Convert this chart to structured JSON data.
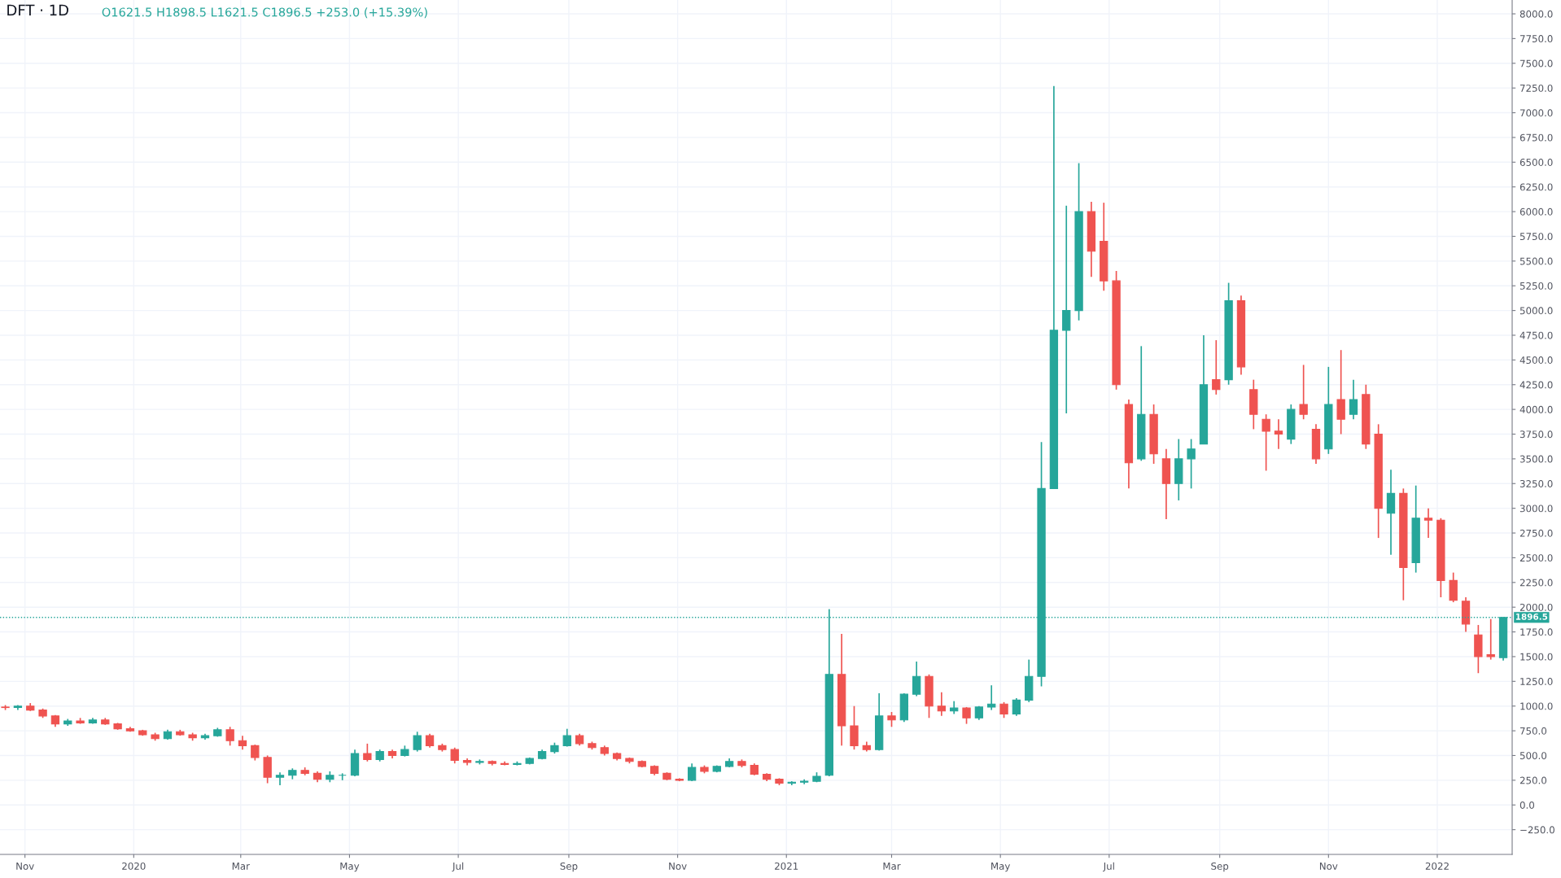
{
  "chart_data": {
    "type": "candlestick",
    "title": "DFT · 1D",
    "annotations": [
      "O1621.5 H1898.5 L1621.5 C1896.5 +253.0 (+15.39%)"
    ],
    "x": [
      "2019-10-21",
      "2019-10-28",
      "2019-11-04",
      "2019-11-11",
      "2019-11-18",
      "2019-11-25",
      "2019-12-02",
      "2019-12-09",
      "2019-12-16",
      "2019-12-23",
      "2019-12-30",
      "2020-01-06",
      "2020-01-13",
      "2020-01-20",
      "2020-01-27",
      "2020-02-03",
      "2020-02-10",
      "2020-02-17",
      "2020-02-24",
      "2020-03-02",
      "2020-03-09",
      "2020-03-16",
      "2020-03-23",
      "2020-03-30",
      "2020-04-06",
      "2020-04-13",
      "2020-04-20",
      "2020-04-27",
      "2020-05-04",
      "2020-05-11",
      "2020-05-18",
      "2020-05-25",
      "2020-06-01",
      "2020-06-08",
      "2020-06-15",
      "2020-06-22",
      "2020-06-29",
      "2020-07-06",
      "2020-07-13",
      "2020-07-20",
      "2020-07-27",
      "2020-08-03",
      "2020-08-10",
      "2020-08-17",
      "2020-08-24",
      "2020-08-31",
      "2020-09-07",
      "2020-09-14",
      "2020-09-21",
      "2020-09-28",
      "2020-10-05",
      "2020-10-12",
      "2020-10-19",
      "2020-10-26",
      "2020-11-02",
      "2020-11-09",
      "2020-11-16",
      "2020-11-23",
      "2020-11-30",
      "2020-12-07",
      "2020-12-14",
      "2020-12-21",
      "2020-12-28",
      "2021-01-04",
      "2021-01-11",
      "2021-01-18",
      "2021-01-25",
      "2021-02-01",
      "2021-02-08",
      "2021-02-15",
      "2021-02-22",
      "2021-03-01",
      "2021-03-08",
      "2021-03-15",
      "2021-03-22",
      "2021-03-29",
      "2021-04-05",
      "2021-04-12",
      "2021-04-19",
      "2021-04-26",
      "2021-05-03",
      "2021-05-10",
      "2021-05-17",
      "2021-05-24",
      "2021-05-31",
      "2021-06-07",
      "2021-06-14",
      "2021-06-21",
      "2021-06-28",
      "2021-07-05",
      "2021-07-12",
      "2021-07-19",
      "2021-07-26",
      "2021-08-02",
      "2021-08-09",
      "2021-08-16",
      "2021-08-23",
      "2021-08-30",
      "2021-09-06",
      "2021-09-13",
      "2021-09-20",
      "2021-09-27",
      "2021-10-04",
      "2021-10-11",
      "2021-10-18",
      "2021-10-25",
      "2021-11-01",
      "2021-11-08",
      "2021-11-15",
      "2021-11-22",
      "2021-11-29",
      "2021-12-06",
      "2021-12-13",
      "2021-12-20",
      "2021-12-27",
      "2022-01-03",
      "2022-01-10",
      "2022-01-17",
      "2022-01-24",
      "2022-01-31",
      "2022-02-07"
    ],
    "ohlc": [
      [
        990,
        1010,
        960,
        985
      ],
      [
        985,
        1010,
        960,
        1000
      ],
      [
        1000,
        1030,
        950,
        960
      ],
      [
        960,
        975,
        880,
        900
      ],
      [
        900,
        910,
        790,
        820
      ],
      [
        820,
        870,
        800,
        850
      ],
      [
        850,
        880,
        820,
        830
      ],
      [
        830,
        880,
        820,
        860
      ],
      [
        860,
        880,
        810,
        820
      ],
      [
        820,
        830,
        760,
        770
      ],
      [
        770,
        790,
        740,
        750
      ],
      [
        750,
        760,
        700,
        710
      ],
      [
        710,
        730,
        650,
        670
      ],
      [
        670,
        760,
        660,
        740
      ],
      [
        740,
        760,
        700,
        710
      ],
      [
        710,
        730,
        650,
        680
      ],
      [
        680,
        720,
        660,
        700
      ],
      [
        700,
        780,
        690,
        760
      ],
      [
        760,
        790,
        600,
        650
      ],
      [
        650,
        700,
        560,
        600
      ],
      [
        600,
        610,
        450,
        480
      ],
      [
        480,
        500,
        220,
        280
      ],
      [
        280,
        330,
        200,
        300
      ],
      [
        300,
        370,
        260,
        350
      ],
      [
        350,
        380,
        300,
        320
      ],
      [
        320,
        340,
        230,
        260
      ],
      [
        260,
        340,
        230,
        300
      ],
      [
        300,
        320,
        250,
        300
      ],
      [
        300,
        560,
        290,
        520
      ],
      [
        520,
        620,
        440,
        460
      ],
      [
        460,
        560,
        440,
        540
      ],
      [
        540,
        560,
        470,
        500
      ],
      [
        500,
        600,
        490,
        560
      ],
      [
        560,
        740,
        540,
        700
      ],
      [
        700,
        720,
        580,
        600
      ],
      [
        600,
        620,
        540,
        560
      ],
      [
        560,
        580,
        420,
        450
      ],
      [
        450,
        470,
        400,
        430
      ],
      [
        430,
        460,
        410,
        440
      ],
      [
        440,
        450,
        400,
        420
      ],
      [
        420,
        440,
        400,
        410
      ],
      [
        410,
        440,
        400,
        420
      ],
      [
        420,
        480,
        410,
        470
      ],
      [
        470,
        560,
        460,
        540
      ],
      [
        540,
        630,
        520,
        600
      ],
      [
        600,
        770,
        590,
        700
      ],
      [
        700,
        720,
        600,
        620
      ],
      [
        620,
        640,
        560,
        580
      ],
      [
        580,
        600,
        500,
        520
      ],
      [
        520,
        530,
        450,
        470
      ],
      [
        470,
        480,
        420,
        440
      ],
      [
        440,
        450,
        380,
        390
      ],
      [
        390,
        400,
        300,
        320
      ],
      [
        320,
        330,
        250,
        260
      ],
      [
        260,
        270,
        240,
        250
      ],
      [
        250,
        420,
        240,
        380
      ],
      [
        380,
        400,
        320,
        340
      ],
      [
        340,
        400,
        330,
        390
      ],
      [
        390,
        470,
        380,
        440
      ],
      [
        440,
        460,
        380,
        400
      ],
      [
        400,
        420,
        300,
        310
      ],
      [
        310,
        320,
        240,
        260
      ],
      [
        260,
        270,
        200,
        220
      ],
      [
        220,
        240,
        200,
        230
      ],
      [
        230,
        260,
        210,
        240
      ],
      [
        240,
        330,
        230,
        290
      ],
      [
        300,
        1980,
        290,
        1320
      ],
      [
        1320,
        1730,
        600,
        800
      ],
      [
        800,
        1000,
        560,
        600
      ],
      [
        600,
        640,
        540,
        560
      ],
      [
        560,
        1130,
        550,
        900
      ],
      [
        900,
        940,
        790,
        860
      ],
      [
        860,
        1130,
        840,
        1120
      ],
      [
        1120,
        1450,
        1100,
        1300
      ],
      [
        1300,
        1320,
        880,
        1000
      ],
      [
        1000,
        1140,
        900,
        950
      ],
      [
        950,
        1050,
        920,
        980
      ],
      [
        980,
        990,
        820,
        880
      ],
      [
        880,
        1000,
        860,
        990
      ],
      [
        990,
        1210,
        960,
        1020
      ],
      [
        1020,
        1040,
        880,
        920
      ],
      [
        920,
        1080,
        900,
        1060
      ],
      [
        1060,
        1470,
        1040,
        1300
      ],
      [
        1300,
        3670,
        1200,
        3200
      ],
      [
        3200,
        7270,
        3200,
        4800
      ],
      [
        4800,
        6060,
        3960,
        5000
      ],
      [
        5000,
        6490,
        4900,
        6000
      ],
      [
        6000,
        6100,
        5340,
        5600
      ],
      [
        5700,
        6090,
        5200,
        5300
      ],
      [
        5300,
        5400,
        4200,
        4250
      ],
      [
        4050,
        4100,
        3200,
        3460
      ],
      [
        3500,
        4640,
        3480,
        3950
      ],
      [
        3950,
        4050,
        3450,
        3550
      ],
      [
        3500,
        3600,
        2890,
        3250
      ],
      [
        3250,
        3700,
        3080,
        3500
      ],
      [
        3500,
        3700,
        3200,
        3600
      ],
      [
        3650,
        4750,
        3650,
        4250
      ],
      [
        4300,
        4700,
        4150,
        4200
      ],
      [
        4300,
        5280,
        4250,
        5100
      ],
      [
        5100,
        5150,
        4350,
        4430
      ],
      [
        4200,
        4300,
        3800,
        3950
      ],
      [
        3900,
        3950,
        3380,
        3780
      ],
      [
        3780,
        3900,
        3600,
        3750
      ],
      [
        3700,
        4050,
        3650,
        4000
      ],
      [
        4050,
        4450,
        3900,
        3950
      ],
      [
        3800,
        3850,
        3450,
        3500
      ],
      [
        3600,
        4430,
        3550,
        4050
      ],
      [
        4100,
        4600,
        3750,
        3900
      ],
      [
        3950,
        4300,
        3900,
        4100
      ],
      [
        4150,
        4250,
        3600,
        3650
      ],
      [
        3750,
        3850,
        2700,
        3000
      ],
      [
        2950,
        3390,
        2530,
        3150
      ],
      [
        3150,
        3200,
        2070,
        2400
      ],
      [
        2450,
        3230,
        2350,
        2900
      ],
      [
        2900,
        3000,
        2700,
        2880
      ],
      [
        2880,
        2900,
        2100,
        2270
      ],
      [
        2270,
        2350,
        2050,
        2070
      ],
      [
        2060,
        2100,
        1750,
        1830
      ],
      [
        1720,
        1820,
        1333,
        1500
      ],
      [
        1520,
        1880,
        1470,
        1500
      ],
      [
        1490,
        1898.5,
        1460,
        1896.5
      ]
    ],
    "colors": [
      "#ef5350",
      "#26a69a",
      "#ef5350",
      "#ef5350",
      "#ef5350",
      "#26a69a",
      "#ef5350",
      "#26a69a",
      "#ef5350",
      "#ef5350",
      "#ef5350",
      "#ef5350",
      "#ef5350",
      "#26a69a",
      "#ef5350",
      "#ef5350",
      "#26a69a",
      "#26a69a",
      "#ef5350",
      "#ef5350",
      "#ef5350",
      "#ef5350",
      "#26a69a",
      "#26a69a",
      "#ef5350",
      "#ef5350",
      "#26a69a",
      "#26a69a",
      "#26a69a",
      "#ef5350",
      "#26a69a",
      "#ef5350",
      "#26a69a",
      "#26a69a",
      "#ef5350",
      "#ef5350",
      "#ef5350",
      "#ef5350",
      "#26a69a",
      "#ef5350",
      "#ef5350",
      "#26a69a",
      "#26a69a",
      "#26a69a",
      "#26a69a",
      "#26a69a",
      "#ef5350",
      "#ef5350",
      "#ef5350",
      "#ef5350",
      "#ef5350",
      "#ef5350",
      "#ef5350",
      "#ef5350",
      "#ef5350",
      "#26a69a",
      "#ef5350",
      "#26a69a",
      "#26a69a",
      "#ef5350",
      "#ef5350",
      "#ef5350",
      "#ef5350",
      "#26a69a",
      "#26a69a",
      "#26a69a",
      "#26a69a",
      "#ef5350",
      "#ef5350",
      "#ef5350",
      "#26a69a",
      "#ef5350",
      "#26a69a",
      "#26a69a",
      "#ef5350",
      "#ef5350",
      "#26a69a",
      "#ef5350",
      "#26a69a",
      "#26a69a",
      "#ef5350",
      "#26a69a",
      "#26a69a",
      "#26a69a",
      "#26a69a",
      "#26a69a",
      "#26a69a",
      "#ef5350",
      "#ef5350",
      "#ef5350",
      "#ef5350",
      "#26a69a",
      "#ef5350",
      "#ef5350",
      "#26a69a",
      "#26a69a",
      "#26a69a",
      "#ef5350",
      "#26a69a",
      "#ef5350",
      "#ef5350",
      "#ef5350",
      "#ef5350",
      "#26a69a",
      "#ef5350",
      "#ef5350",
      "#26a69a",
      "#ef5350",
      "#26a69a",
      "#ef5350",
      "#ef5350",
      "#26a69a",
      "#ef5350",
      "#26a69a",
      "#ef5350",
      "#ef5350",
      "#ef5350",
      "#ef5350",
      "#ef5350",
      "#ef5350",
      "#26a69a"
    ],
    "xlim": [
      "2019-10-18",
      "2022-02-12"
    ],
    "xticks": [
      {
        "value": "2019-11-01",
        "label": "Nov"
      },
      {
        "value": "2020-01-01",
        "label": "2020"
      },
      {
        "value": "2020-03-01",
        "label": "Mar"
      },
      {
        "value": "2020-05-01",
        "label": "May"
      },
      {
        "value": "2020-07-01",
        "label": "Jul"
      },
      {
        "value": "2020-09-01",
        "label": "Sep"
      },
      {
        "value": "2020-11-01",
        "label": "Nov"
      },
      {
        "value": "2021-01-01",
        "label": "2021"
      },
      {
        "value": "2021-03-01",
        "label": "Mar"
      },
      {
        "value": "2021-05-01",
        "label": "May"
      },
      {
        "value": "2021-07-01",
        "label": "Jul"
      },
      {
        "value": "2021-09-01",
        "label": "Sep"
      },
      {
        "value": "2021-11-01",
        "label": "Nov"
      },
      {
        "value": "2022-01-01",
        "label": "2022"
      }
    ],
    "ylim": [
      -500,
      8140
    ],
    "yticks": [
      {
        "value": -250,
        "label": "−250.0"
      },
      {
        "value": 0,
        "label": "0.0"
      },
      {
        "value": 250,
        "label": "250.0"
      },
      {
        "value": 500,
        "label": "500.0"
      },
      {
        "value": 750,
        "label": "750.0"
      },
      {
        "value": 1000,
        "label": "1000.0"
      },
      {
        "value": 1250,
        "label": "1250.0"
      },
      {
        "value": 1500,
        "label": "1500.0"
      },
      {
        "value": 1750,
        "label": "1750.0"
      },
      {
        "value": 2000,
        "label": "2000.0"
      },
      {
        "value": 2250,
        "label": "2250.0"
      },
      {
        "value": 2500,
        "label": "2500.0"
      },
      {
        "value": 2750,
        "label": "2750.0"
      },
      {
        "value": 3000,
        "label": "3000.0"
      },
      {
        "value": 3250,
        "label": "3250.0"
      },
      {
        "value": 3500,
        "label": "3500.0"
      },
      {
        "value": 3750,
        "label": "3750.0"
      },
      {
        "value": 4000,
        "label": "4000.0"
      },
      {
        "value": 4250,
        "label": "4250.0"
      },
      {
        "value": 4500,
        "label": "4500.0"
      },
      {
        "value": 4750,
        "label": "4750.0"
      },
      {
        "value": 5000,
        "label": "5000.0"
      },
      {
        "value": 5250,
        "label": "5250.0"
      },
      {
        "value": 5500,
        "label": "5500.0"
      },
      {
        "value": 5750,
        "label": "5750.0"
      },
      {
        "value": 6000,
        "label": "6000.0"
      },
      {
        "value": 6250,
        "label": "6250.0"
      },
      {
        "value": 6500,
        "label": "6500.0"
      },
      {
        "value": 6750,
        "label": "6750.0"
      },
      {
        "value": 7000,
        "label": "7000.0"
      },
      {
        "value": 7250,
        "label": "7250.0"
      },
      {
        "value": 7500,
        "label": "7500.0"
      },
      {
        "value": 7750,
        "label": "7750.0"
      },
      {
        "value": 8000,
        "label": "8000.0"
      }
    ],
    "ref_lines": [
      {
        "axis": "y",
        "value": 1896.5,
        "label": "1896.5",
        "color": "#26a69a",
        "line_style": "dotted"
      }
    ],
    "grid": true
  }
}
